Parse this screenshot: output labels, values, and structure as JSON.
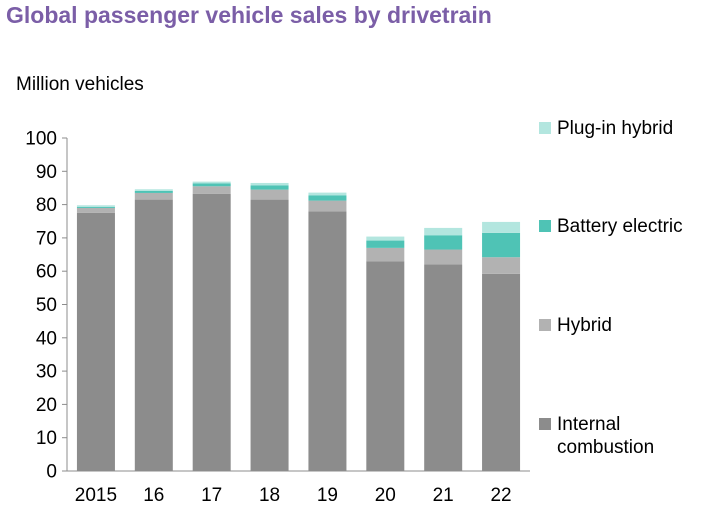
{
  "chart_data": {
    "type": "bar",
    "stacked": true,
    "title": "Global passenger vehicle sales by drivetrain",
    "ylabel": "Million vehicles",
    "xlabel": "",
    "ylim": [
      0,
      100
    ],
    "yticks": [
      0,
      10,
      20,
      30,
      40,
      50,
      60,
      70,
      80,
      90,
      100
    ],
    "categories": [
      "2015",
      "16",
      "17",
      "18",
      "19",
      "20",
      "21",
      "22"
    ],
    "grid": false,
    "legend_position": "right",
    "series": [
      {
        "name": "Internal combustion",
        "legend_label": "Internal\ncombustion",
        "color": "#8c8c8c",
        "values": [
          77.5,
          81.5,
          83.2,
          81.5,
          78.0,
          63.0,
          62.0,
          59.2
        ]
      },
      {
        "name": "Hybrid",
        "legend_label": "Hybrid",
        "color": "#b2b2b2",
        "values": [
          1.5,
          2.0,
          2.3,
          3.0,
          3.2,
          4.0,
          4.5,
          5.0
        ]
      },
      {
        "name": "Battery electric",
        "legend_label": "Battery electric",
        "color": "#4fc3b5",
        "values": [
          0.3,
          0.6,
          0.9,
          1.3,
          1.6,
          2.2,
          4.3,
          7.3
        ]
      },
      {
        "name": "Plug-in hybrid",
        "legend_label": "Plug-in hybrid",
        "color": "#b3e6df",
        "values": [
          0.5,
          0.5,
          0.5,
          0.7,
          0.8,
          1.2,
          2.2,
          3.3
        ]
      }
    ],
    "legend_order": [
      "Plug-in hybrid",
      "Battery electric",
      "Hybrid",
      "Internal combustion"
    ]
  }
}
